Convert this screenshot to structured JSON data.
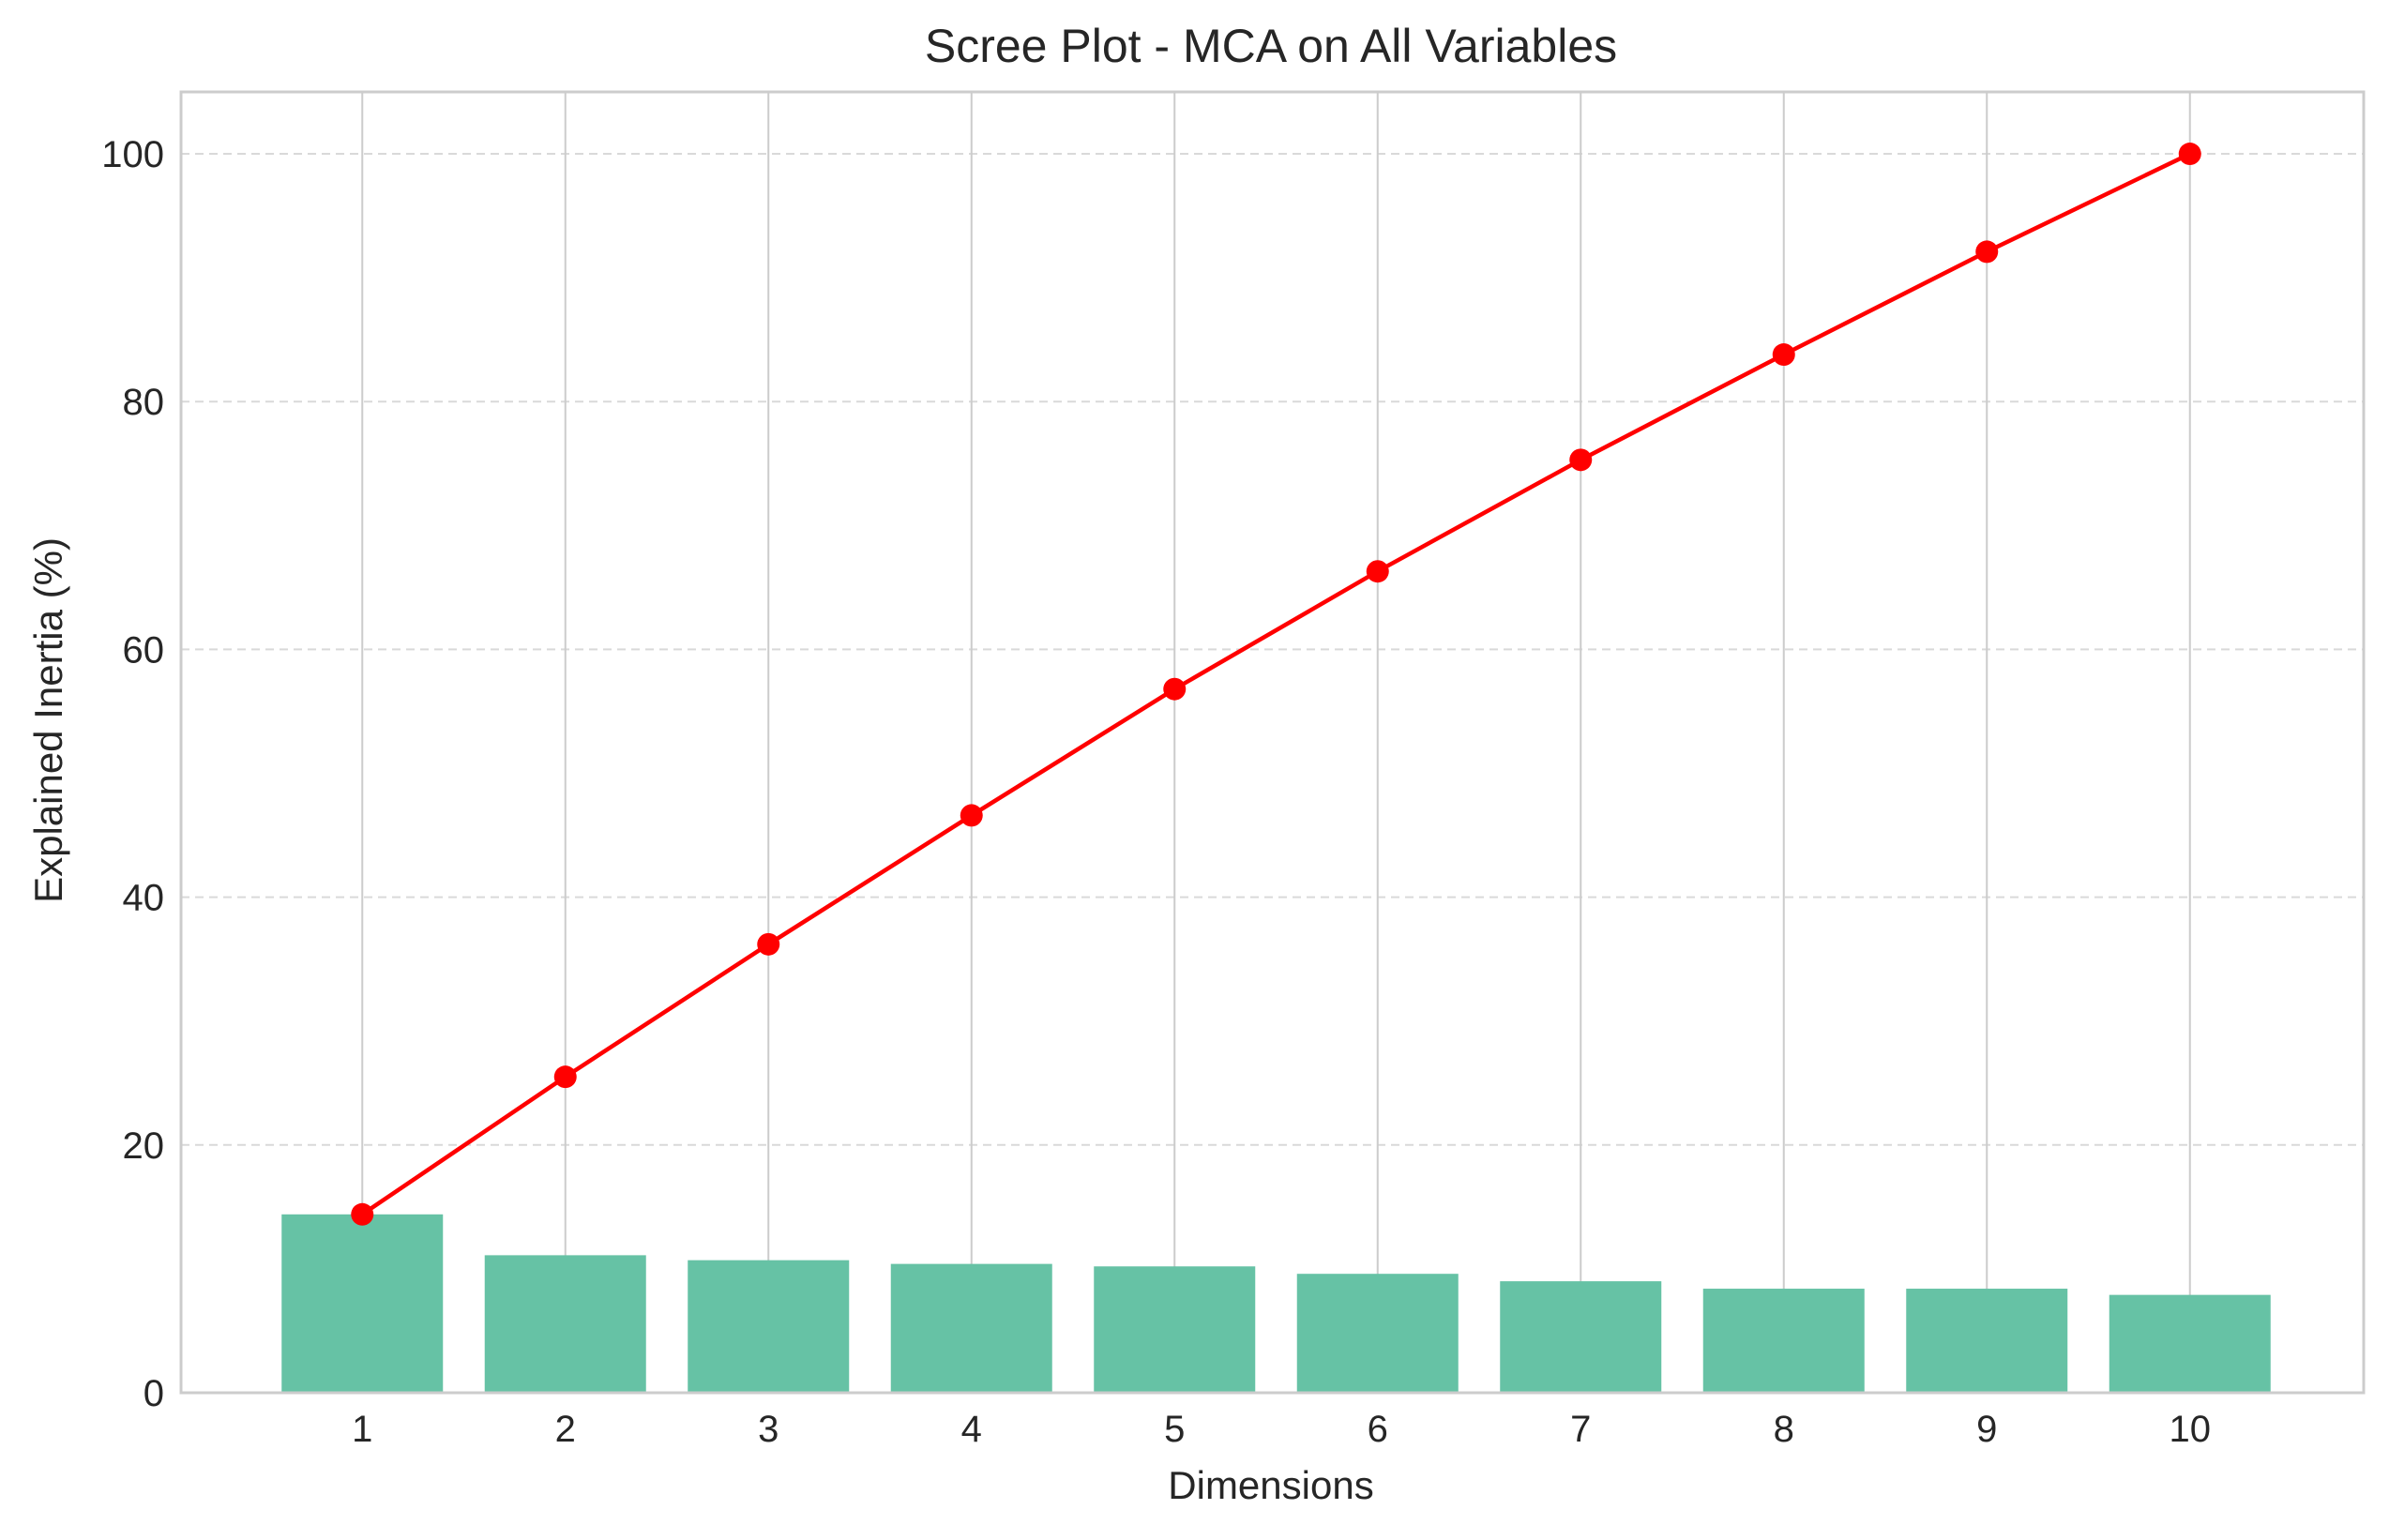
{
  "chart_data": {
    "type": "bar",
    "title": "Scree Plot - MCA on All Variables",
    "xlabel": "Dimensions",
    "ylabel": "Explained Inertia (%)",
    "categories": [
      "1",
      "2",
      "3",
      "4",
      "5",
      "6",
      "7",
      "8",
      "9",
      "10"
    ],
    "x_ticks": [
      "1",
      "2",
      "3",
      "4",
      "5",
      "6",
      "7",
      "8",
      "9",
      "10"
    ],
    "y_ticks": [
      "0",
      "20",
      "40",
      "60",
      "80",
      "100"
    ],
    "ylim": [
      0,
      105
    ],
    "grid": {
      "x": true,
      "y": true,
      "y_style": "dashed"
    },
    "series": [
      {
        "kind": "bar",
        "color": "#66c2a5",
        "values": [
          14.4,
          11.1,
          10.7,
          10.4,
          10.2,
          9.6,
          9.0,
          8.4,
          8.4,
          7.9
        ]
      },
      {
        "kind": "line",
        "marker": "circle",
        "color": "#ff0000",
        "values": [
          14.4,
          25.5,
          36.2,
          46.6,
          56.8,
          66.3,
          75.3,
          83.8,
          92.1,
          100.0
        ]
      }
    ]
  }
}
